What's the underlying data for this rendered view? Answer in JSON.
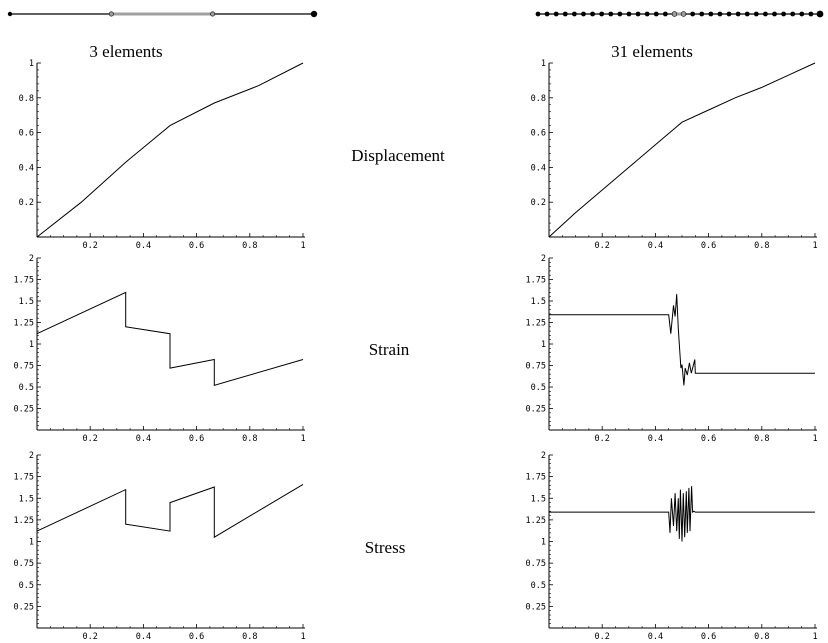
{
  "column_titles": [
    "3 elements",
    "31 elements"
  ],
  "row_labels": [
    "Displacement",
    "Strain",
    "Stress"
  ],
  "mesh": {
    "3_elements": {
      "nodes": 4,
      "highlighted_element": 2,
      "line_color": "#000000",
      "highlight_color": "#a0a0a0"
    },
    "31_elements": {
      "nodes": 32,
      "highlighted_element": 16,
      "line_color": "#000000",
      "highlight_color": "#a0a0a0"
    }
  },
  "colors": {
    "curve": "#000000",
    "axis": "#000000",
    "background": "#ffffff"
  },
  "chart_data": [
    {
      "id": "disp-3",
      "type": "line",
      "title": "3 elements",
      "row": "Displacement",
      "xlim": [
        0,
        1
      ],
      "ylim": [
        0,
        1
      ],
      "xticks": [
        0.2,
        0.4,
        0.6,
        0.8,
        1
      ],
      "xtick_labels": [
        "0.2",
        "0.4",
        "0.6",
        "0.8",
        "1"
      ],
      "yticks": [
        0.2,
        0.4,
        0.6,
        0.8,
        1
      ],
      "ytick_labels": [
        "0.2",
        "0.4",
        "0.6",
        "0.8",
        "1"
      ],
      "series": [
        {
          "x": [
            0,
            0.1667,
            0.3333,
            0.5,
            0.6667,
            0.8333,
            1
          ],
          "y": [
            0,
            0.2,
            0.43,
            0.64,
            0.77,
            0.87,
            1
          ]
        }
      ]
    },
    {
      "id": "disp-31",
      "type": "line",
      "title": "31 elements",
      "row": "Displacement",
      "xlim": [
        0,
        1
      ],
      "ylim": [
        0,
        1
      ],
      "xticks": [
        0.2,
        0.4,
        0.6,
        0.8,
        1
      ],
      "xtick_labels": [
        "0.2",
        "0.4",
        "0.6",
        "0.8",
        "1"
      ],
      "yticks": [
        0.2,
        0.4,
        0.6,
        0.8,
        1
      ],
      "ytick_labels": [
        "0.2",
        "0.4",
        "0.6",
        "0.8",
        "1"
      ],
      "series": [
        {
          "x": [
            0,
            0.1,
            0.2,
            0.3,
            0.4,
            0.5,
            0.6,
            0.7,
            0.8,
            0.9,
            1
          ],
          "y": [
            0,
            0.14,
            0.27,
            0.4,
            0.53,
            0.66,
            0.73,
            0.8,
            0.86,
            0.93,
            1
          ]
        }
      ]
    },
    {
      "id": "disp-31-placeholder",
      "type": "none"
    },
    {
      "id": "strain-3",
      "type": "line",
      "row": "Strain",
      "xlim": [
        0,
        1
      ],
      "ylim": [
        0,
        2
      ],
      "xticks": [
        0.2,
        0.4,
        0.6,
        0.8,
        1
      ],
      "xtick_labels": [
        "0.2",
        "0.4",
        "0.6",
        "0.8",
        "1"
      ],
      "yticks": [
        0.25,
        0.5,
        0.75,
        1,
        1.25,
        1.5,
        1.75,
        2
      ],
      "ytick_labels": [
        "0.25",
        "0.5",
        "0.75",
        "1",
        "1.25",
        "1.5",
        "1.75",
        "2"
      ],
      "series": [
        {
          "x": [
            0,
            0.3333,
            0.3333,
            0.5,
            0.5,
            0.6667,
            0.6667,
            1
          ],
          "y": [
            1.12,
            1.6,
            1.2,
            1.12,
            0.72,
            0.82,
            0.52,
            0.82
          ]
        }
      ]
    },
    {
      "id": "strain-31",
      "type": "line",
      "row": "Strain",
      "xlim": [
        0,
        1
      ],
      "ylim": [
        0,
        2
      ],
      "xticks": [
        0.2,
        0.4,
        0.6,
        0.8,
        1
      ],
      "xtick_labels": [
        "0.2",
        "0.4",
        "0.6",
        "0.8",
        "1"
      ],
      "yticks": [
        0.25,
        0.5,
        0.75,
        1,
        1.25,
        1.5,
        1.75,
        2
      ],
      "ytick_labels": [
        "0.25",
        "0.5",
        "0.75",
        "1",
        "1.25",
        "1.5",
        "1.75",
        "2"
      ],
      "series": [
        {
          "x": [
            0,
            0.45,
            0.458,
            0.468,
            0.474,
            0.48,
            0.486,
            0.49,
            0.496,
            0.5,
            0.507,
            0.512,
            0.52,
            0.528,
            0.535,
            0.548,
            0.55,
            1
          ],
          "y": [
            1.34,
            1.34,
            1.12,
            1.45,
            1.32,
            1.58,
            1.18,
            1.0,
            0.72,
            0.76,
            0.52,
            0.72,
            0.64,
            0.78,
            0.66,
            0.82,
            0.66,
            0.66
          ]
        }
      ]
    },
    {
      "id": "stress-3",
      "type": "line",
      "row": "Stress",
      "xlim": [
        0,
        1
      ],
      "ylim": [
        0,
        2
      ],
      "xticks": [
        0.2,
        0.4,
        0.6,
        0.8,
        1
      ],
      "xtick_labels": [
        "0.2",
        "0.4",
        "0.6",
        "0.8",
        "1"
      ],
      "yticks": [
        0.25,
        0.5,
        0.75,
        1,
        1.25,
        1.5,
        1.75,
        2
      ],
      "ytick_labels": [
        "0.25",
        "0.5",
        "0.75",
        "1",
        "1.25",
        "1.5",
        "1.75",
        "2"
      ],
      "series": [
        {
          "x": [
            0,
            0.3333,
            0.3333,
            0.5,
            0.5,
            0.6667,
            0.6667,
            1
          ],
          "y": [
            1.12,
            1.6,
            1.2,
            1.12,
            1.45,
            1.63,
            1.05,
            1.66
          ]
        }
      ]
    },
    {
      "id": "stress-31",
      "type": "line",
      "row": "Stress",
      "xlim": [
        0,
        1
      ],
      "ylim": [
        0,
        2
      ],
      "xticks": [
        0.2,
        0.4,
        0.6,
        0.8,
        1
      ],
      "xtick_labels": [
        "0.2",
        "0.4",
        "0.6",
        "0.8",
        "1"
      ],
      "yticks": [
        0.25,
        0.5,
        0.75,
        1,
        1.25,
        1.5,
        1.75,
        2
      ],
      "ytick_labels": [
        "0.25",
        "0.5",
        "0.75",
        "1",
        "1.25",
        "1.5",
        "1.75",
        "2"
      ],
      "series": [
        {
          "x": [
            0,
            0.45,
            0.455,
            0.46,
            0.468,
            0.474,
            0.48,
            0.486,
            0.49,
            0.494,
            0.5,
            0.505,
            0.51,
            0.516,
            0.52,
            0.526,
            0.53,
            0.536,
            0.54,
            0.545,
            0.55,
            1
          ],
          "y": [
            1.34,
            1.34,
            1.1,
            1.5,
            1.18,
            1.56,
            1.12,
            1.5,
            1.03,
            1.6,
            1.0,
            1.56,
            1.05,
            1.58,
            1.1,
            1.62,
            1.12,
            1.64,
            1.34,
            1.35,
            1.34,
            1.34
          ]
        }
      ]
    }
  ]
}
